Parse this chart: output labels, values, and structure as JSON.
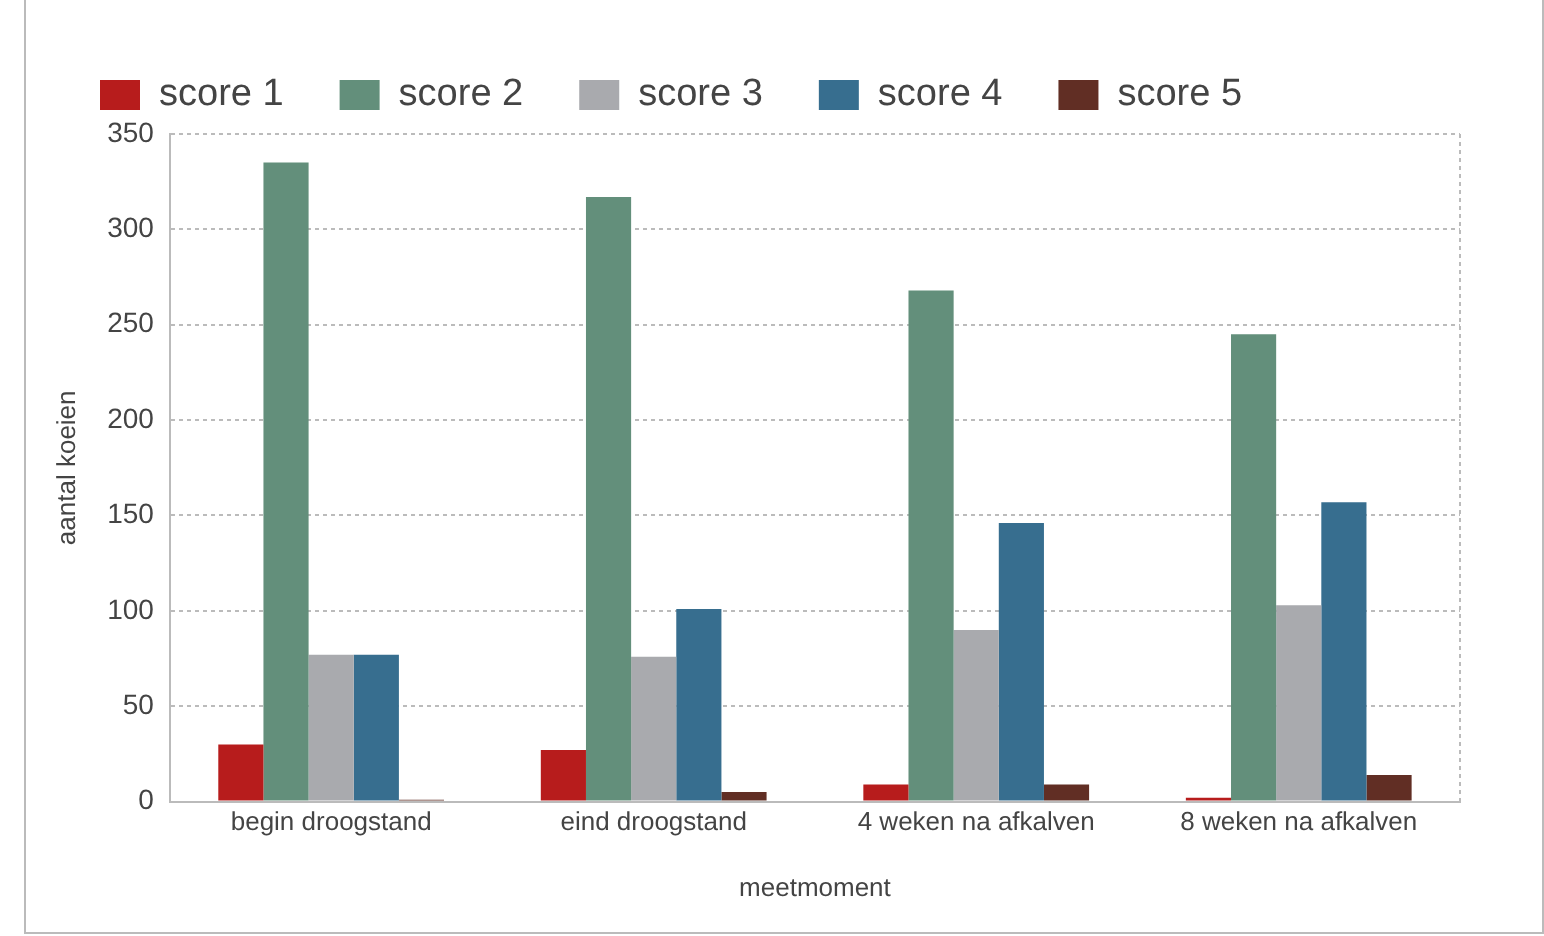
{
  "chart_data": {
    "type": "bar",
    "xlabel": "meetmoment",
    "ylabel": "aantal koeien",
    "categories": [
      "begin droogstand",
      "eind droogstand",
      "4 weken na afkalven",
      "8 weken na afkalven"
    ],
    "series": [
      {
        "name": "score 1",
        "color": "#b71c1c",
        "values": [
          30,
          27,
          9,
          2
        ]
      },
      {
        "name": "score 2",
        "color": "#638f7b",
        "values": [
          335,
          317,
          268,
          245
        ]
      },
      {
        "name": "score 3",
        "color": "#a9aaae",
        "values": [
          77,
          76,
          90,
          103
        ]
      },
      {
        "name": "score 4",
        "color": "#376e8f",
        "values": [
          77,
          101,
          146,
          157
        ]
      },
      {
        "name": "score 5",
        "color": "#612e24",
        "values": [
          1,
          5,
          9,
          14
        ]
      }
    ],
    "ylim": [
      0,
      350
    ],
    "yticks": [
      0,
      50,
      100,
      150,
      200,
      250,
      300,
      350
    ],
    "grid": "y",
    "legend": "top"
  }
}
